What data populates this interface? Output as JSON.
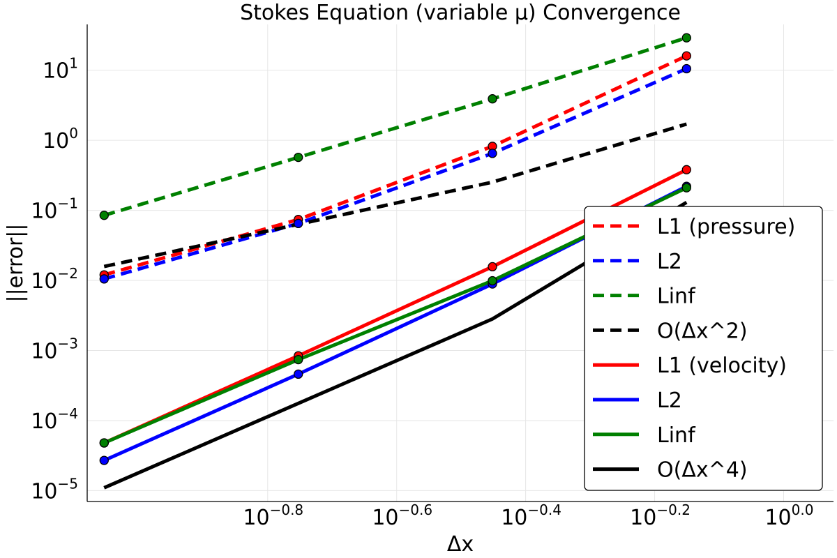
{
  "chart_data": {
    "type": "line",
    "title": "Stokes Equation (variable μ) Convergence",
    "xlabel": "Δx",
    "ylabel": "||error||",
    "xscale": "log10",
    "yscale": "log10",
    "grid": true,
    "legend_position": "right",
    "xlim": [
      0.0832,
      1.195
    ],
    "ylim": [
      7e-06,
      45
    ],
    "x_ticks": [
      {
        "base": "10",
        "exp": "−0.8",
        "value": 0.1585
      },
      {
        "base": "10",
        "exp": "−0.6",
        "value": 0.2512
      },
      {
        "base": "10",
        "exp": "−0.4",
        "value": 0.3981
      },
      {
        "base": "10",
        "exp": "−0.2",
        "value": 0.631
      },
      {
        "base": "10",
        "exp": "0.0",
        "value": 1.0
      }
    ],
    "y_ticks": [
      {
        "base": "10",
        "exp": "1",
        "value": 10
      },
      {
        "base": "10",
        "exp": "0",
        "value": 1
      },
      {
        "base": "10",
        "exp": "−1",
        "value": 0.1
      },
      {
        "base": "10",
        "exp": "−2",
        "value": 0.01
      },
      {
        "base": "10",
        "exp": "−3",
        "value": 0.001
      },
      {
        "base": "10",
        "exp": "−4",
        "value": 0.0001
      },
      {
        "base": "10",
        "exp": "−5",
        "value": 1e-05
      }
    ],
    "x": [
      0.0884,
      0.1768,
      0.3536,
      0.7071
    ],
    "series": [
      {
        "name": "L1 (pressure)",
        "color": "#ff0000",
        "style": "dashed",
        "markers": true,
        "values": [
          0.012,
          0.074,
          0.82,
          16.0
        ]
      },
      {
        "name": "L2",
        "color": "#0000ff",
        "style": "dashed",
        "markers": true,
        "values": [
          0.0105,
          0.065,
          0.65,
          10.5
        ]
      },
      {
        "name": "Linf",
        "color": "#008000",
        "style": "dashed",
        "markers": true,
        "values": [
          0.085,
          0.57,
          3.9,
          29.0
        ]
      },
      {
        "name": "O(Δx^2)",
        "color": "#000000",
        "style": "dashed",
        "markers": false,
        "values": [
          0.0158,
          0.0632,
          0.2528,
          1.7
        ]
      },
      {
        "name": "L1 (velocity)",
        "color": "#ff0000",
        "style": "solid",
        "markers": true,
        "values": [
          4.8e-05,
          0.00084,
          0.0157,
          0.38
        ]
      },
      {
        "name": "L2",
        "color": "#0000ff",
        "style": "solid",
        "markers": true,
        "values": [
          2.7e-05,
          0.00046,
          0.0089,
          0.22
        ]
      },
      {
        "name": "Linf",
        "color": "#008000",
        "style": "solid",
        "markers": true,
        "values": [
          4.8e-05,
          0.00074,
          0.0099,
          0.21
        ]
      },
      {
        "name": "O(Δx^4)",
        "color": "#000000",
        "style": "solid",
        "markers": false,
        "values": [
          1.1e-05,
          0.000176,
          0.00282,
          0.13
        ]
      }
    ]
  }
}
